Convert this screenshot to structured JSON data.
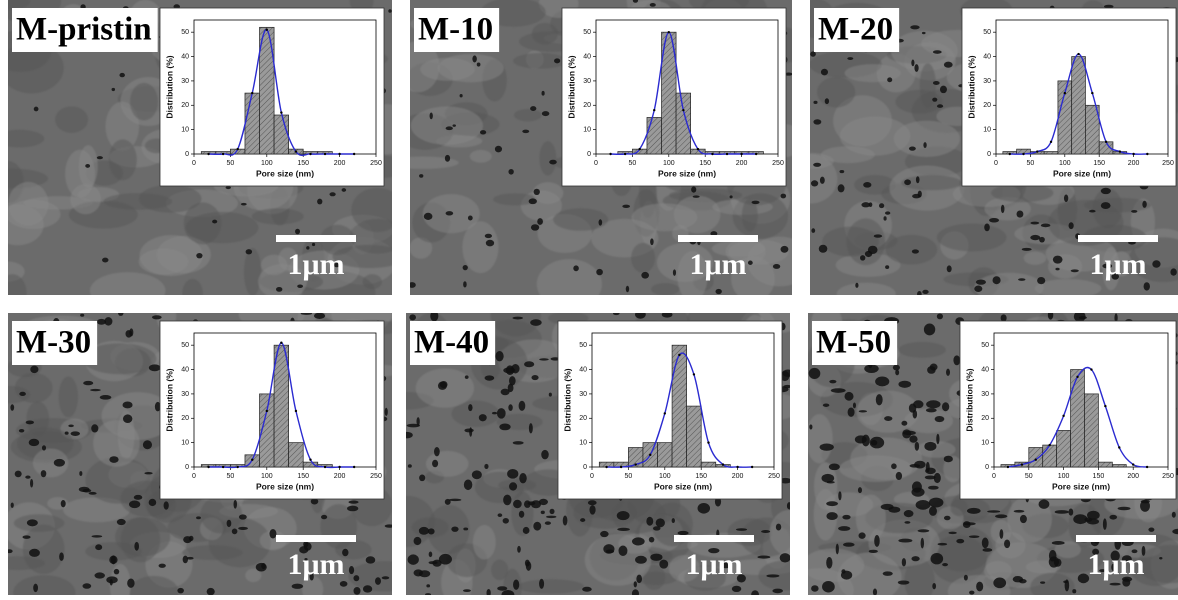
{
  "chart_data": [
    {
      "type": "histogram",
      "title": "M-pristin",
      "scale_bar": "1μm",
      "xlabel": "Pore size (nm)",
      "ylabel": "Distribution (%)",
      "bins": [
        10,
        30,
        50,
        70,
        90,
        110,
        130,
        150,
        170,
        190,
        210,
        230
      ],
      "values": [
        1,
        1,
        2,
        25,
        52,
        16,
        2,
        1,
        1,
        0,
        0
      ],
      "color": "#8c8c8c",
      "fit": {
        "color": "#2b2bd0",
        "x": [
          20,
          40,
          60,
          80,
          100,
          120,
          140,
          160,
          180,
          200,
          220
        ],
        "values": [
          0,
          0,
          2,
          25,
          51,
          17,
          1,
          0,
          0,
          0,
          0
        ]
      },
      "xlim": [
        0,
        250
      ],
      "ylim": [
        0,
        55
      ],
      "xticks": [
        0,
        50,
        100,
        150,
        200,
        250
      ],
      "yticks": [
        0,
        10,
        20,
        30,
        40,
        50
      ]
    },
    {
      "type": "histogram",
      "title": "M-10",
      "scale_bar": "1μm",
      "xlabel": "Pore size (nm)",
      "ylabel": "Distribution (%)",
      "bins": [
        10,
        30,
        50,
        70,
        90,
        110,
        130,
        150,
        170,
        190,
        210,
        230
      ],
      "values": [
        0,
        1,
        2,
        15,
        50,
        25,
        2,
        1,
        1,
        1,
        1
      ],
      "color": "#8c8c8c",
      "fit": {
        "color": "#2b2bd0",
        "x": [
          20,
          40,
          60,
          80,
          100,
          120,
          140,
          160,
          180,
          200,
          220
        ],
        "values": [
          0,
          0,
          2,
          18,
          50,
          18,
          2,
          0,
          0,
          0,
          0
        ]
      },
      "xlim": [
        0,
        250
      ],
      "ylim": [
        0,
        55
      ],
      "xticks": [
        0,
        50,
        100,
        150,
        200,
        250
      ],
      "yticks": [
        0,
        10,
        20,
        30,
        40,
        50
      ]
    },
    {
      "type": "histogram",
      "title": "M-20",
      "scale_bar": "1μm",
      "xlabel": "Pore size (nm)",
      "ylabel": "Distribution (%)",
      "bins": [
        10,
        30,
        50,
        70,
        90,
        110,
        130,
        150,
        170,
        190,
        210,
        230
      ],
      "values": [
        1,
        2,
        1,
        1,
        30,
        40,
        20,
        5,
        1,
        0,
        0
      ],
      "color": "#8c8c8c",
      "fit": {
        "color": "#2b2bd0",
        "x": [
          20,
          40,
          60,
          80,
          100,
          120,
          140,
          160,
          180,
          200,
          220
        ],
        "values": [
          0,
          0,
          1,
          5,
          25,
          41,
          25,
          5,
          1,
          0,
          0
        ]
      },
      "xlim": [
        0,
        250
      ],
      "ylim": [
        0,
        55
      ],
      "xticks": [
        0,
        50,
        100,
        150,
        200,
        250
      ],
      "yticks": [
        0,
        10,
        20,
        30,
        40,
        50
      ]
    },
    {
      "type": "histogram",
      "title": "M-30",
      "scale_bar": "1μm",
      "xlabel": "Pore size (nm)",
      "ylabel": "Distribution (%)",
      "bins": [
        10,
        30,
        50,
        70,
        90,
        110,
        130,
        150,
        170,
        190,
        210,
        230
      ],
      "values": [
        1,
        1,
        1,
        5,
        30,
        50,
        10,
        2,
        1,
        0,
        0
      ],
      "color": "#8c8c8c",
      "fit": {
        "color": "#2b2bd0",
        "x": [
          20,
          40,
          60,
          80,
          100,
          120,
          140,
          160,
          180,
          200,
          220
        ],
        "values": [
          0,
          0,
          0,
          3,
          23,
          51,
          23,
          3,
          0,
          0,
          0
        ]
      },
      "xlim": [
        0,
        250
      ],
      "ylim": [
        0,
        55
      ],
      "xticks": [
        0,
        50,
        100,
        150,
        200,
        250
      ],
      "yticks": [
        0,
        10,
        20,
        30,
        40,
        50
      ]
    },
    {
      "type": "histogram",
      "title": "M-40",
      "scale_bar": "1μm",
      "xlabel": "Pore size (nm)",
      "ylabel": "Distribution (%)",
      "bins": [
        10,
        30,
        50,
        70,
        90,
        110,
        130,
        150,
        170,
        190,
        210,
        230
      ],
      "values": [
        2,
        2,
        8,
        10,
        10,
        50,
        25,
        2,
        1,
        0,
        0
      ],
      "color": "#8c8c8c",
      "fit": {
        "color": "#2b2bd0",
        "x": [
          20,
          40,
          60,
          80,
          100,
          120,
          140,
          160,
          180,
          200,
          220
        ],
        "values": [
          0,
          0,
          1,
          5,
          22,
          46,
          38,
          10,
          1,
          0,
          0
        ]
      },
      "xlim": [
        0,
        250
      ],
      "ylim": [
        0,
        55
      ],
      "xticks": [
        0,
        50,
        100,
        150,
        200,
        250
      ],
      "yticks": [
        0,
        10,
        20,
        30,
        40,
        50
      ]
    },
    {
      "type": "histogram",
      "title": "M-50",
      "scale_bar": "1μm",
      "xlabel": "Pore size (nm)",
      "ylabel": "Distribution (%)",
      "bins": [
        10,
        30,
        50,
        70,
        90,
        110,
        130,
        150,
        170,
        190,
        210,
        230
      ],
      "values": [
        1,
        2,
        8,
        9,
        15,
        40,
        30,
        2,
        1,
        0,
        0
      ],
      "color": "#8c8c8c",
      "fit": {
        "color": "#2b2bd0",
        "x": [
          20,
          40,
          60,
          80,
          100,
          120,
          140,
          160,
          180,
          200,
          220
        ],
        "values": [
          0,
          1,
          3,
          9,
          21,
          37,
          40,
          25,
          8,
          1,
          0
        ]
      },
      "xlim": [
        0,
        250
      ],
      "ylim": [
        0,
        55
      ],
      "xticks": [
        0,
        50,
        100,
        150,
        200,
        250
      ],
      "yticks": [
        0,
        10,
        20,
        30,
        40,
        50
      ]
    }
  ]
}
